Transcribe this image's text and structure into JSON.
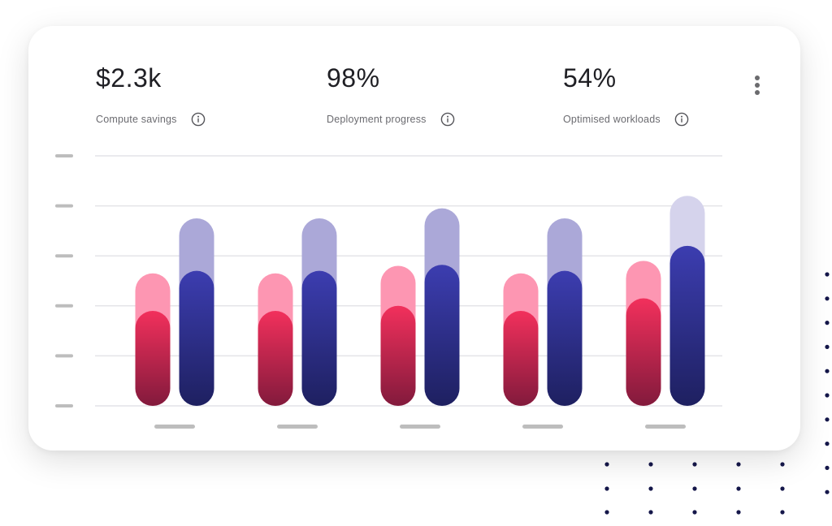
{
  "stats": [
    {
      "value": "$2.3k",
      "label": "Compute savings",
      "icon": "info-icon"
    },
    {
      "value": "98%",
      "label": "Deployment progress",
      "icon": "info-icon"
    },
    {
      "value": "54%",
      "label": "Optimised workloads",
      "icon": "info-icon"
    }
  ],
  "menu_icon": "more-vertical-icon",
  "colors": {
    "pink_light": "#fd96b2",
    "pink_top": "#f2305c",
    "pink_bottom": "#821a3c",
    "blue_light": "#aba8d8",
    "blue_light_last": "#d5d3ec",
    "blue_top": "#3c3db0",
    "blue_bottom": "#1e2060",
    "grid": "#e4e4e8",
    "placeholder": "#bdbdbd",
    "dots": "#15174a"
  },
  "chart_data": {
    "type": "bar",
    "ylim": [
      0,
      5
    ],
    "yticks": 6,
    "categories": [
      "",
      "",
      "",
      "",
      ""
    ],
    "series": [
      {
        "values": [
          2.65,
          2.65,
          2.8,
          2.65,
          2.9
        ]
      },
      {
        "values": [
          1.9,
          1.9,
          2.0,
          1.9,
          2.15
        ]
      },
      {
        "values": [
          3.75,
          3.75,
          3.95,
          3.75,
          4.2
        ]
      },
      {
        "values": [
          2.7,
          2.7,
          2.82,
          2.7,
          3.2
        ]
      }
    ]
  }
}
